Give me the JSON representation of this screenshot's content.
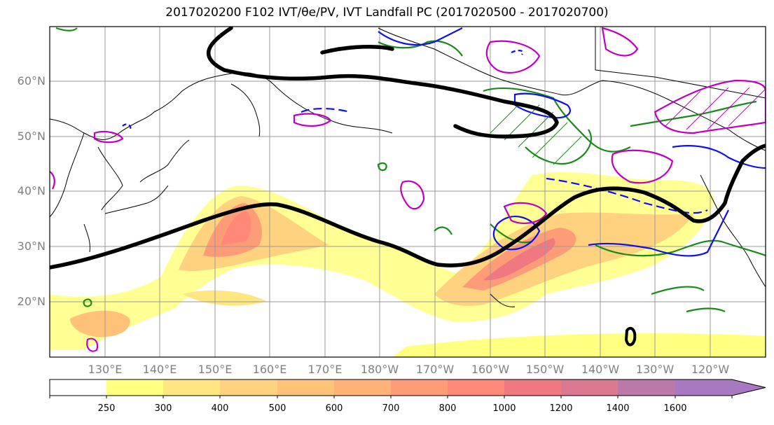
{
  "title": "2017020200 F102 IVT/θe/PV, IVT Landfall PC (2017020500 - 2017020700)",
  "lat_labels": [
    "60°N",
    "50°N",
    "40°N",
    "30°N",
    "20°N"
  ],
  "lon_labels": [
    "130°E",
    "140°E",
    "150°E",
    "160°E",
    "170°E",
    "180°W",
    "170°W",
    "160°W",
    "150°W",
    "140°W",
    "130°W",
    "120°W"
  ],
  "colorbar": {
    "levels": [
      "250",
      "300",
      "400",
      "500",
      "600",
      "700",
      "800",
      "1000",
      "1200",
      "1400",
      "1600"
    ],
    "colors": [
      "#ffff80",
      "#ffe680",
      "#ffd280",
      "#ffc278",
      "#ffb278",
      "#ff9c78",
      "#ff8878",
      "#f07880",
      "#dc7890",
      "#bc78a8",
      "#a878c0"
    ]
  },
  "field_colors": {
    "land_outline": "#000000",
    "jet_line": "#000000",
    "green_contour": "#1a8a1a",
    "blue_contour": "#1010ee",
    "magenta_contour": "#c000c0"
  }
}
